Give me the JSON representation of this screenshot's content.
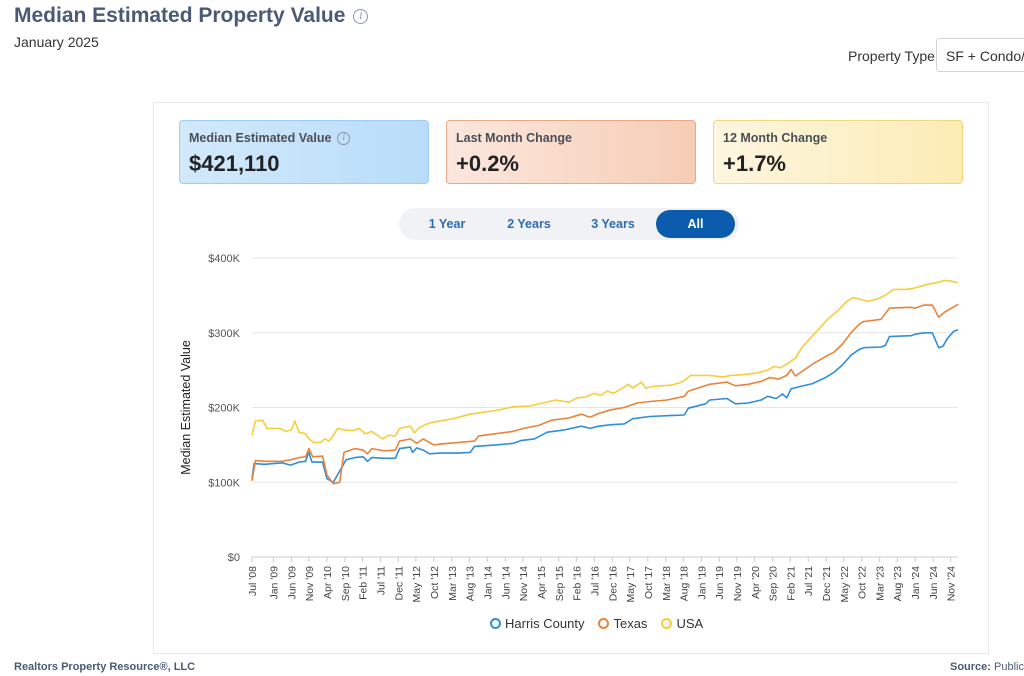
{
  "page": {
    "title": "Median Estimated Property Value",
    "subtitle": "January 2025",
    "property_type_label": "Property Type",
    "property_type_value": "SF + Condo/Townhouse"
  },
  "cards": [
    {
      "label": "Median Estimated Value",
      "value": "$421,110"
    },
    {
      "label": "Last Month Change",
      "value": "+0.2%"
    },
    {
      "label": "12 Month Change",
      "value": "+1.7%"
    }
  ],
  "tabs": [
    {
      "label": "1 Year"
    },
    {
      "label": "2 Years"
    },
    {
      "label": "3 Years"
    },
    {
      "label": "All"
    }
  ],
  "footer": {
    "left": "Realtors Property Resource®, LLC",
    "source_label": "Source:",
    "source_value": "Public"
  },
  "chart_data": {
    "type": "line",
    "title": "Median Estimated Property Value",
    "ylabel": "Median Estimated Value",
    "ylim": [
      0,
      400000
    ],
    "yticks": [
      0,
      100000,
      200000,
      300000,
      400000
    ],
    "ytick_labels": [
      "$0",
      "$100K",
      "$200K",
      "$300K",
      "$400K"
    ],
    "xrange": [
      2008.5,
      2025.0
    ],
    "xticks": [
      {
        "label": "Jul '08",
        "t": 2008.5
      },
      {
        "label": "Jan '09",
        "t": 2009.0
      },
      {
        "label": "Jun '09",
        "t": 2009.42
      },
      {
        "label": "Nov '09",
        "t": 2009.83
      },
      {
        "label": "Apr '10",
        "t": 2010.25
      },
      {
        "label": "Sep '10",
        "t": 2010.67
      },
      {
        "label": "Feb '11",
        "t": 2011.08
      },
      {
        "label": "Jul '11",
        "t": 2011.5
      },
      {
        "label": "Dec '11",
        "t": 2011.92
      },
      {
        "label": "May '12",
        "t": 2012.33
      },
      {
        "label": "Oct '12",
        "t": 2012.75
      },
      {
        "label": "Mar '13",
        "t": 2013.17
      },
      {
        "label": "Aug '13",
        "t": 2013.58
      },
      {
        "label": "Jan '14",
        "t": 2014.0
      },
      {
        "label": "Jun '14",
        "t": 2014.42
      },
      {
        "label": "Nov '14",
        "t": 2014.83
      },
      {
        "label": "Apr '15",
        "t": 2015.25
      },
      {
        "label": "Sep '15",
        "t": 2015.67
      },
      {
        "label": "Feb '16",
        "t": 2016.08
      },
      {
        "label": "Jul '16",
        "t": 2016.5
      },
      {
        "label": "Dec '16",
        "t": 2016.92
      },
      {
        "label": "May '17",
        "t": 2017.33
      },
      {
        "label": "Oct '17",
        "t": 2017.75
      },
      {
        "label": "Mar '18",
        "t": 2018.17
      },
      {
        "label": "Aug '18",
        "t": 2018.58
      },
      {
        "label": "Jan '19",
        "t": 2019.0
      },
      {
        "label": "Jun '19",
        "t": 2019.42
      },
      {
        "label": "Nov '19",
        "t": 2019.83
      },
      {
        "label": "Apr '20",
        "t": 2020.25
      },
      {
        "label": "Sep '20",
        "t": 2020.67
      },
      {
        "label": "Feb '21",
        "t": 2021.08
      },
      {
        "label": "Jul '21",
        "t": 2021.5
      },
      {
        "label": "Dec '21",
        "t": 2021.92
      },
      {
        "label": "May '22",
        "t": 2022.33
      },
      {
        "label": "Oct '22",
        "t": 2022.75
      },
      {
        "label": "Mar '23",
        "t": 2023.17
      },
      {
        "label": "Aug '23",
        "t": 2023.58
      },
      {
        "label": "Jan '24",
        "t": 2024.0
      },
      {
        "label": "Jun '24",
        "t": 2024.42
      },
      {
        "label": "Nov '24",
        "t": 2024.83
      }
    ],
    "series": [
      {
        "name": "Harris County",
        "color": "#2f8fd8",
        "points": [
          [
            2008.5,
            105000
          ],
          [
            2008.55,
            125000
          ],
          [
            2008.8,
            124000
          ],
          [
            2009.2,
            126000
          ],
          [
            2009.4,
            123000
          ],
          [
            2009.6,
            127000
          ],
          [
            2009.75,
            128000
          ],
          [
            2009.83,
            140000
          ],
          [
            2009.9,
            127000
          ],
          [
            2010.15,
            127000
          ],
          [
            2010.25,
            105000
          ],
          [
            2010.4,
            100000
          ],
          [
            2010.55,
            115000
          ],
          [
            2010.7,
            130000
          ],
          [
            2010.9,
            133000
          ],
          [
            2011.1,
            134000
          ],
          [
            2011.2,
            128000
          ],
          [
            2011.3,
            133000
          ],
          [
            2011.6,
            132000
          ],
          [
            2011.85,
            132000
          ],
          [
            2011.95,
            145000
          ],
          [
            2012.2,
            147000
          ],
          [
            2012.25,
            140000
          ],
          [
            2012.35,
            146000
          ],
          [
            2012.5,
            143000
          ],
          [
            2012.65,
            138000
          ],
          [
            2012.9,
            139000
          ],
          [
            2013.3,
            139000
          ],
          [
            2013.6,
            140000
          ],
          [
            2013.7,
            148000
          ],
          [
            2014.2,
            150000
          ],
          [
            2014.6,
            152000
          ],
          [
            2014.8,
            156000
          ],
          [
            2015.1,
            158000
          ],
          [
            2015.4,
            167000
          ],
          [
            2015.8,
            170000
          ],
          [
            2016.2,
            175000
          ],
          [
            2016.4,
            172000
          ],
          [
            2016.6,
            175000
          ],
          [
            2016.9,
            177000
          ],
          [
            2017.2,
            178000
          ],
          [
            2017.4,
            185000
          ],
          [
            2017.8,
            188000
          ],
          [
            2018.2,
            189000
          ],
          [
            2018.6,
            190000
          ],
          [
            2018.7,
            199000
          ],
          [
            2019.1,
            205000
          ],
          [
            2019.2,
            210000
          ],
          [
            2019.6,
            212000
          ],
          [
            2019.8,
            205000
          ],
          [
            2020.1,
            206000
          ],
          [
            2020.4,
            210000
          ],
          [
            2020.55,
            215000
          ],
          [
            2020.75,
            212000
          ],
          [
            2020.9,
            218000
          ],
          [
            2021.0,
            213000
          ],
          [
            2021.1,
            225000
          ],
          [
            2021.3,
            228000
          ],
          [
            2021.6,
            232000
          ],
          [
            2021.9,
            240000
          ],
          [
            2022.1,
            247000
          ],
          [
            2022.3,
            257000
          ],
          [
            2022.5,
            270000
          ],
          [
            2022.7,
            278000
          ],
          [
            2022.8,
            280000
          ],
          [
            2023.2,
            281000
          ],
          [
            2023.3,
            283000
          ],
          [
            2023.4,
            295000
          ],
          [
            2023.9,
            296000
          ],
          [
            2024.0,
            298000
          ],
          [
            2024.2,
            300000
          ],
          [
            2024.4,
            300000
          ],
          [
            2024.55,
            280000
          ],
          [
            2024.65,
            282000
          ],
          [
            2024.75,
            292000
          ],
          [
            2024.9,
            302000
          ],
          [
            2025.0,
            304000
          ]
        ]
      },
      {
        "name": "Texas",
        "color": "#e8843a",
        "points": [
          [
            2008.5,
            102000
          ],
          [
            2008.58,
            129000
          ],
          [
            2008.8,
            128000
          ],
          [
            2009.2,
            128000
          ],
          [
            2009.4,
            130000
          ],
          [
            2009.6,
            133000
          ],
          [
            2009.75,
            134000
          ],
          [
            2009.83,
            145000
          ],
          [
            2009.92,
            134000
          ],
          [
            2010.15,
            135000
          ],
          [
            2010.25,
            110000
          ],
          [
            2010.4,
            98000
          ],
          [
            2010.55,
            100000
          ],
          [
            2010.65,
            140000
          ],
          [
            2010.9,
            145000
          ],
          [
            2011.1,
            143000
          ],
          [
            2011.2,
            138000
          ],
          [
            2011.3,
            145000
          ],
          [
            2011.6,
            142000
          ],
          [
            2011.85,
            143000
          ],
          [
            2011.95,
            155000
          ],
          [
            2012.2,
            158000
          ],
          [
            2012.35,
            152000
          ],
          [
            2012.5,
            158000
          ],
          [
            2012.75,
            150000
          ],
          [
            2012.9,
            151000
          ],
          [
            2013.3,
            153000
          ],
          [
            2013.7,
            155000
          ],
          [
            2013.8,
            162000
          ],
          [
            2014.2,
            165000
          ],
          [
            2014.6,
            168000
          ],
          [
            2014.85,
            172000
          ],
          [
            2015.2,
            176000
          ],
          [
            2015.5,
            183000
          ],
          [
            2015.9,
            186000
          ],
          [
            2016.2,
            191000
          ],
          [
            2016.4,
            187000
          ],
          [
            2016.6,
            192000
          ],
          [
            2016.9,
            197000
          ],
          [
            2017.2,
            200000
          ],
          [
            2017.5,
            206000
          ],
          [
            2017.8,
            208000
          ],
          [
            2018.2,
            210000
          ],
          [
            2018.6,
            215000
          ],
          [
            2018.7,
            222000
          ],
          [
            2019.2,
            231000
          ],
          [
            2019.6,
            234000
          ],
          [
            2019.8,
            229000
          ],
          [
            2020.1,
            231000
          ],
          [
            2020.4,
            235000
          ],
          [
            2020.6,
            240000
          ],
          [
            2020.8,
            238000
          ],
          [
            2021.0,
            243000
          ],
          [
            2021.1,
            251000
          ],
          [
            2021.2,
            242000
          ],
          [
            2021.4,
            250000
          ],
          [
            2021.6,
            258000
          ],
          [
            2021.9,
            268000
          ],
          [
            2022.1,
            274000
          ],
          [
            2022.3,
            285000
          ],
          [
            2022.5,
            300000
          ],
          [
            2022.7,
            312000
          ],
          [
            2022.8,
            315000
          ],
          [
            2023.2,
            318000
          ],
          [
            2023.4,
            333000
          ],
          [
            2023.9,
            334000
          ],
          [
            2024.0,
            333000
          ],
          [
            2024.2,
            337000
          ],
          [
            2024.4,
            337000
          ],
          [
            2024.55,
            321000
          ],
          [
            2024.7,
            328000
          ],
          [
            2024.85,
            333000
          ],
          [
            2025.0,
            338000
          ]
        ]
      },
      {
        "name": "USA",
        "color": "#f6cd3c",
        "points": [
          [
            2008.5,
            163000
          ],
          [
            2008.58,
            182000
          ],
          [
            2008.75,
            183000
          ],
          [
            2008.85,
            172000
          ],
          [
            2009.15,
            172000
          ],
          [
            2009.3,
            168000
          ],
          [
            2009.42,
            170000
          ],
          [
            2009.5,
            182000
          ],
          [
            2009.6,
            167000
          ],
          [
            2009.75,
            165000
          ],
          [
            2009.83,
            158000
          ],
          [
            2009.95,
            153000
          ],
          [
            2010.1,
            153000
          ],
          [
            2010.2,
            158000
          ],
          [
            2010.3,
            155000
          ],
          [
            2010.4,
            163000
          ],
          [
            2010.5,
            172000
          ],
          [
            2010.65,
            170000
          ],
          [
            2010.85,
            169000
          ],
          [
            2011.0,
            172000
          ],
          [
            2011.15,
            165000
          ],
          [
            2011.3,
            168000
          ],
          [
            2011.45,
            162000
          ],
          [
            2011.55,
            158000
          ],
          [
            2011.7,
            163000
          ],
          [
            2011.85,
            162000
          ],
          [
            2011.95,
            172000
          ],
          [
            2012.2,
            175000
          ],
          [
            2012.3,
            166000
          ],
          [
            2012.4,
            173000
          ],
          [
            2012.55,
            177000
          ],
          [
            2012.7,
            180000
          ],
          [
            2013.2,
            185000
          ],
          [
            2013.6,
            191000
          ],
          [
            2014.2,
            196000
          ],
          [
            2014.6,
            201000
          ],
          [
            2015.0,
            202000
          ],
          [
            2015.3,
            206000
          ],
          [
            2015.6,
            210000
          ],
          [
            2015.9,
            207000
          ],
          [
            2016.1,
            213000
          ],
          [
            2016.3,
            214000
          ],
          [
            2016.5,
            219000
          ],
          [
            2016.65,
            216000
          ],
          [
            2016.8,
            222000
          ],
          [
            2016.95,
            219000
          ],
          [
            2017.1,
            224000
          ],
          [
            2017.3,
            231000
          ],
          [
            2017.4,
            226000
          ],
          [
            2017.6,
            234000
          ],
          [
            2017.7,
            226000
          ],
          [
            2017.85,
            228000
          ],
          [
            2018.3,
            230000
          ],
          [
            2018.5,
            233000
          ],
          [
            2018.6,
            236000
          ],
          [
            2018.75,
            243000
          ],
          [
            2019.2,
            243000
          ],
          [
            2019.5,
            241000
          ],
          [
            2019.7,
            243000
          ],
          [
            2020.0,
            244000
          ],
          [
            2020.3,
            246000
          ],
          [
            2020.55,
            250000
          ],
          [
            2020.7,
            255000
          ],
          [
            2020.85,
            253000
          ],
          [
            2021.0,
            258000
          ],
          [
            2021.2,
            266000
          ],
          [
            2021.35,
            280000
          ],
          [
            2021.6,
            296000
          ],
          [
            2021.75,
            305000
          ],
          [
            2021.95,
            318000
          ],
          [
            2022.2,
            330000
          ],
          [
            2022.4,
            342000
          ],
          [
            2022.55,
            347000
          ],
          [
            2022.7,
            345000
          ],
          [
            2022.9,
            342000
          ],
          [
            2023.1,
            345000
          ],
          [
            2023.3,
            350000
          ],
          [
            2023.5,
            358000
          ],
          [
            2023.8,
            358000
          ],
          [
            2024.0,
            360000
          ],
          [
            2024.3,
            365000
          ],
          [
            2024.5,
            367000
          ],
          [
            2024.7,
            370000
          ],
          [
            2024.85,
            369000
          ],
          [
            2025.0,
            367000
          ]
        ]
      }
    ]
  }
}
